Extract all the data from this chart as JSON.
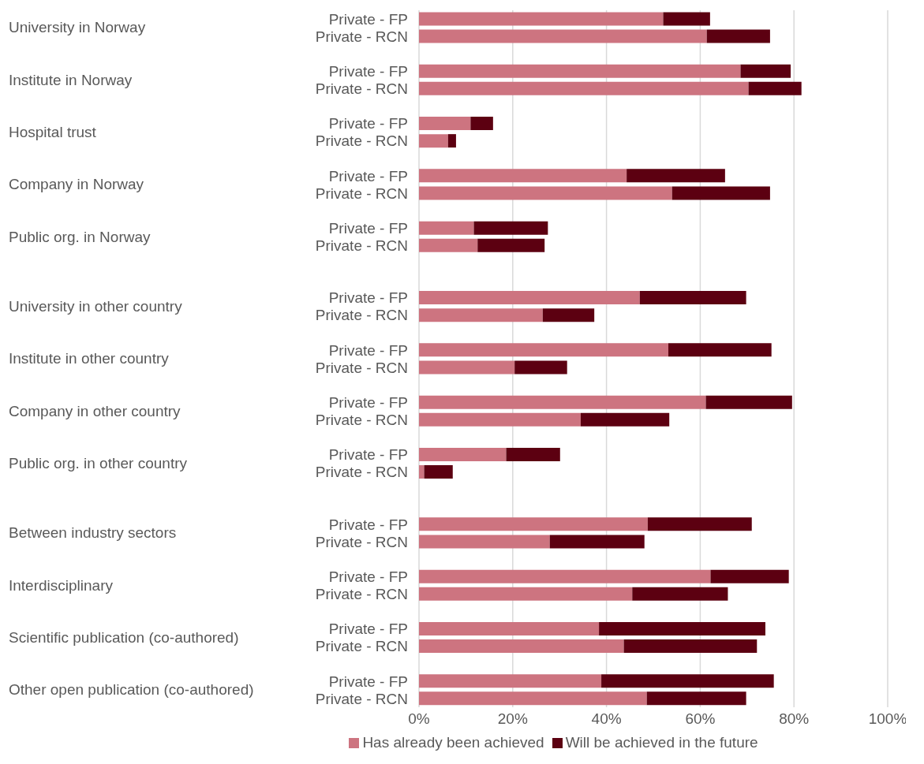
{
  "chart_data": {
    "type": "bar",
    "orientation": "horizontal",
    "stacked": true,
    "categories": [
      "Private - FP",
      "Private - RCN",
      null,
      "Private - FP",
      "Private - RCN",
      null,
      "Private - FP",
      "Private - RCN",
      null,
      "Private - FP",
      "Private - RCN",
      null,
      "Private - FP",
      "Private - RCN",
      null,
      null,
      "Private - FP",
      "Private - RCN",
      null,
      "Private - FP",
      "Private - RCN",
      null,
      "Private - FP",
      "Private - RCN",
      null,
      "Private - FP",
      "Private - RCN",
      null,
      null,
      "Private - FP",
      "Private - RCN",
      null,
      "Private - FP",
      "Private - RCN",
      null,
      "Private - FP",
      "Private - RCN",
      null,
      "Private - FP",
      "Private - RCN"
    ],
    "series": [
      {
        "name": "Has already been achieved",
        "color": "#cd7480",
        "values": [
          52.1,
          61.4,
          null,
          68.6,
          70.3,
          null,
          11.0,
          6.2,
          null,
          44.3,
          54.0,
          null,
          11.7,
          12.5,
          null,
          null,
          47.1,
          26.4,
          null,
          53.2,
          20.4,
          null,
          61.2,
          34.5,
          null,
          18.6,
          1.1,
          null,
          null,
          48.8,
          27.9,
          null,
          62.2,
          45.5,
          null,
          38.4,
          43.7,
          null,
          38.9,
          48.6
        ]
      },
      {
        "name": "Will be achieved in the future",
        "color": "#5c0011",
        "values": [
          10.0,
          13.5,
          null,
          10.7,
          11.3,
          null,
          4.8,
          1.7,
          null,
          21.0,
          20.9,
          null,
          15.8,
          14.3,
          null,
          null,
          22.7,
          11.0,
          null,
          22.0,
          11.2,
          null,
          18.4,
          18.9,
          null,
          11.5,
          6.1,
          null,
          null,
          22.2,
          20.2,
          null,
          16.7,
          20.4,
          null,
          35.5,
          28.4,
          null,
          36.8,
          21.2
        ]
      }
    ],
    "annotations": [
      "University in Norway",
      "Institute in Norway",
      "Hospital trust",
      "Company in Norway",
      "Public org. in Norway",
      "University in other country",
      "Institute in other country",
      "Company in other country",
      "Public org. in other country",
      "Between industry sectors",
      "Interdisciplinary",
      "Scientific publication (co-authored)",
      "Other open publication (co-authored)"
    ],
    "xlim": [
      0,
      100
    ],
    "xticks": [
      {
        "value": 0,
        "label": "0%"
      },
      {
        "value": 20,
        "label": "20%"
      },
      {
        "value": 40,
        "label": "40%"
      },
      {
        "value": 60,
        "label": "60%"
      },
      {
        "value": 80,
        "label": "80%"
      },
      {
        "value": 100,
        "label": "100%"
      }
    ],
    "grid": "x",
    "legend": "bottom"
  }
}
